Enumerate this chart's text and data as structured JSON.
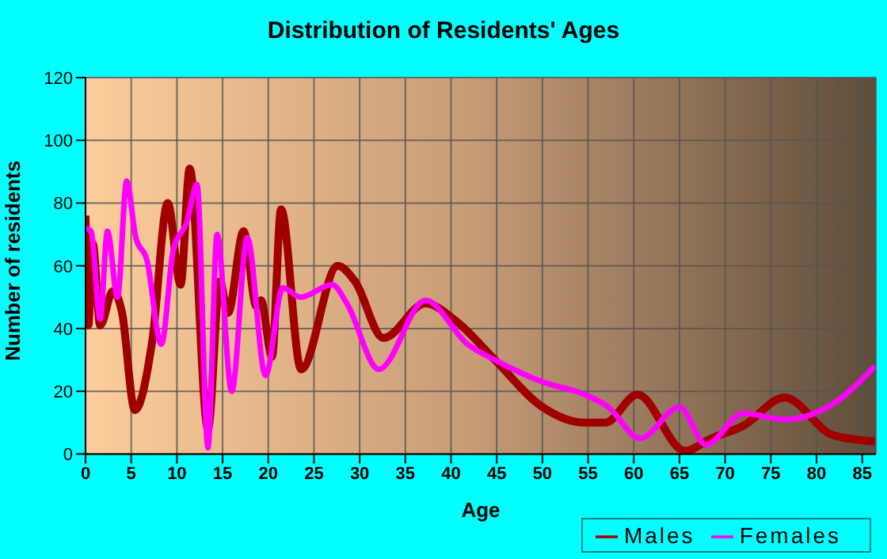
{
  "chart_data": {
    "type": "line",
    "title": "Distribution of Residents' Ages",
    "xlabel": "Age",
    "ylabel": "Number of residents",
    "xlim": [
      0,
      86.5
    ],
    "xticks": [
      0,
      5,
      10,
      15,
      20,
      25,
      30,
      35,
      40,
      45,
      50,
      55,
      60,
      65,
      70,
      75,
      80,
      85
    ],
    "ylim": [
      0,
      120
    ],
    "yticks": [
      0,
      20,
      40,
      60,
      80,
      100,
      120
    ],
    "grid": true,
    "legend": "bottom",
    "marker": "none",
    "line_style": "solid",
    "series": [
      {
        "name": "Males",
        "color": "#a00000",
        "x": [
          0,
          0.3,
          0.8,
          1.6,
          3,
          4,
          5.4,
          7.3,
          9,
          10.4,
          11.4,
          13.4,
          14.7,
          15.6,
          17.3,
          18.7,
          19.2,
          20.4,
          21.4,
          23.6,
          27.6,
          29.5,
          32.6,
          37.2,
          40.7,
          44.8,
          50,
          54.6,
          56.9,
          60.4,
          65.6,
          68.5,
          72,
          76.5,
          81.8,
          86.4
        ],
        "values": [
          76,
          41,
          67,
          41,
          52,
          45,
          14,
          36,
          80,
          54,
          91,
          8,
          55,
          45,
          71,
          47,
          49,
          31,
          78,
          27,
          60,
          55,
          37,
          48,
          42,
          30,
          15,
          10,
          10,
          19,
          1,
          5,
          9,
          18,
          6,
          4
        ]
      },
      {
        "name": "Females",
        "color": "#ff00ff",
        "x": [
          0,
          0.6,
          1.6,
          2.4,
          3.5,
          4.5,
          5.5,
          6.7,
          8.3,
          9.6,
          11.1,
          12.2,
          13.4,
          14.4,
          16,
          17.7,
          19.7,
          21.6,
          23.5,
          27,
          28.6,
          32.1,
          37.2,
          41.8,
          44.8,
          50,
          54.6,
          57.2,
          60.7,
          65,
          67.9,
          72,
          76.5,
          81.8,
          86.4
        ],
        "values": [
          72,
          71,
          43,
          71,
          50,
          87,
          69,
          62,
          35,
          65,
          74,
          86,
          2,
          70,
          20,
          69,
          25,
          53,
          50,
          54,
          48,
          27,
          49,
          35,
          30,
          23,
          19,
          15,
          5,
          15,
          3,
          13,
          11,
          16,
          28
        ]
      }
    ]
  }
}
